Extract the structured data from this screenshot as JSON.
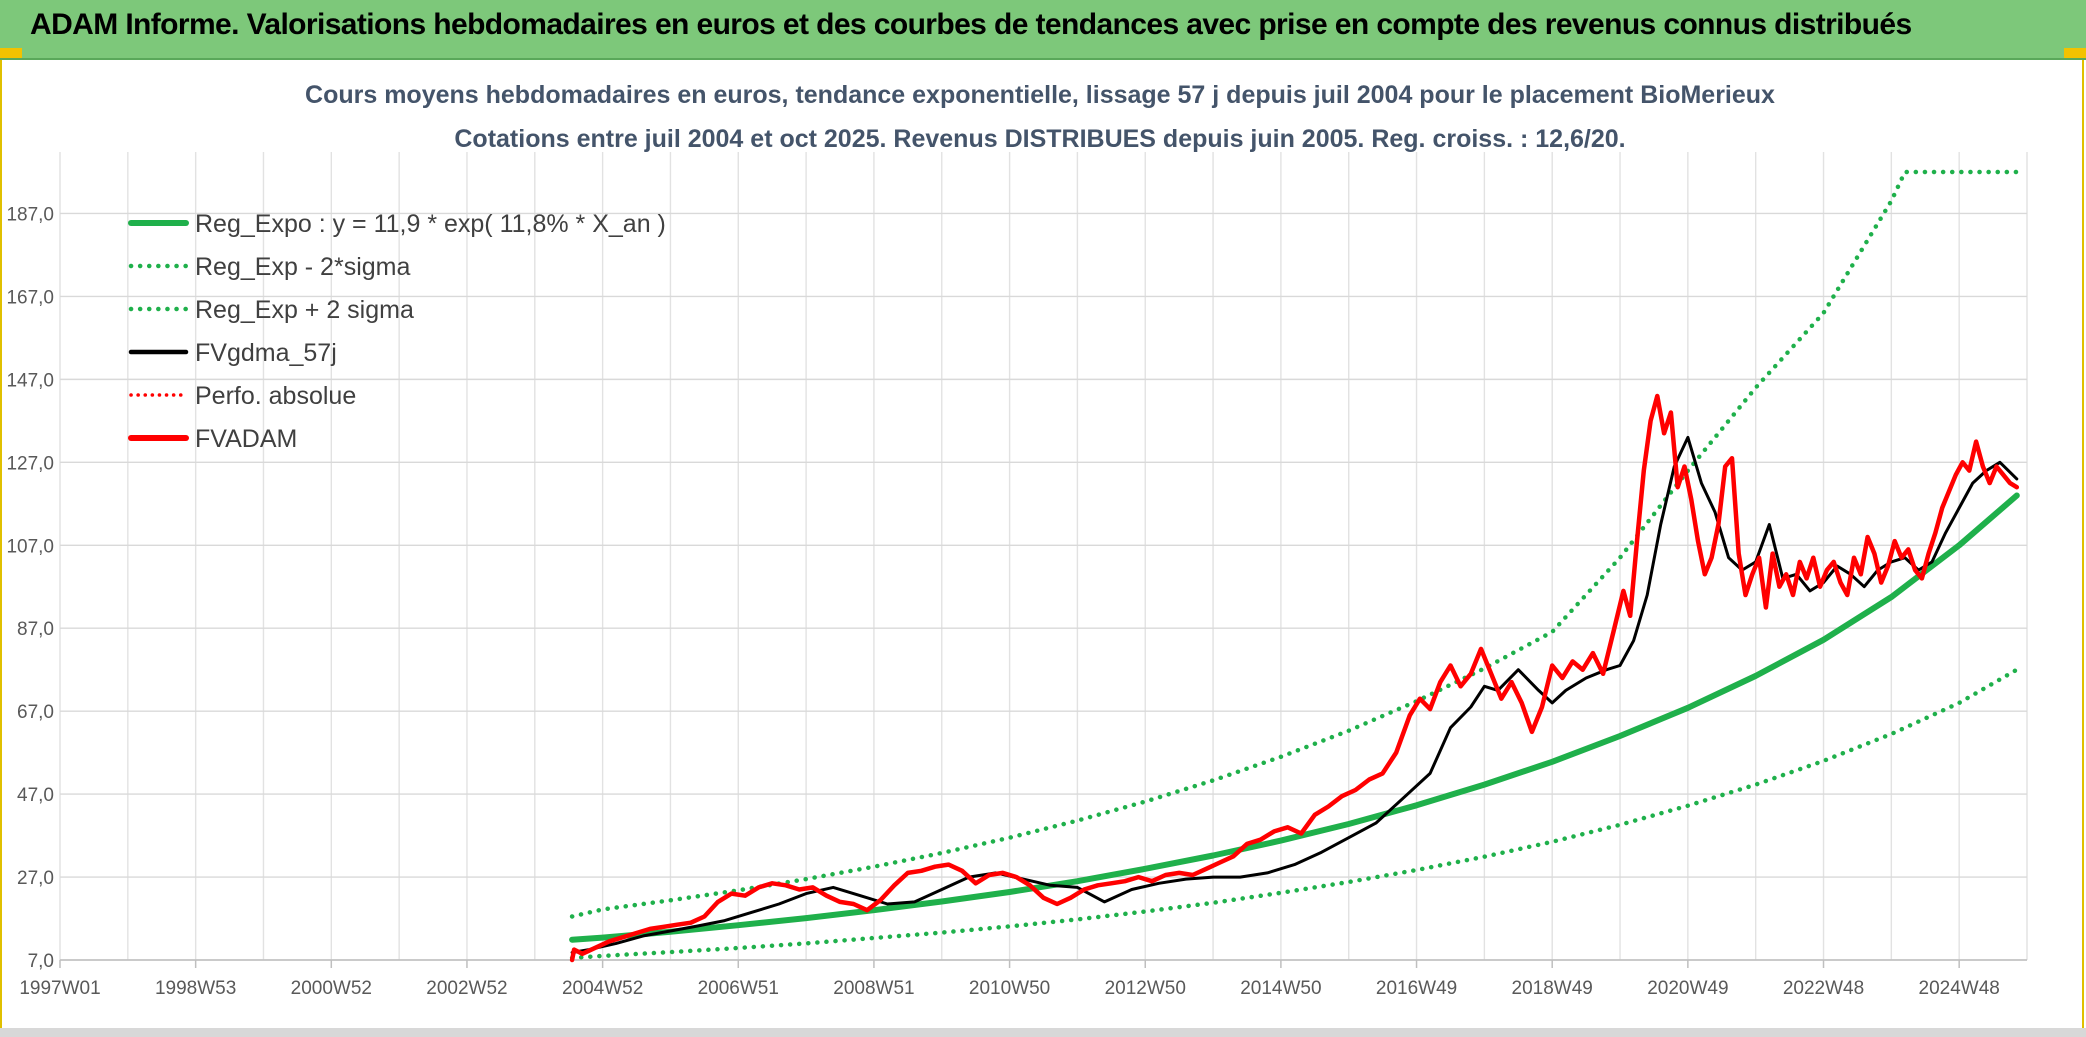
{
  "header": {
    "title": "ADAM Informe. Valorisations hebdomadaires en euros et des courbes de tendances avec prise en compte des revenus connus distribués",
    "background_color": "#7dc87a"
  },
  "chart_data": {
    "type": "line",
    "title_line1": "Cours moyens hebdomadaires en euros, tendance exponentielle, lissage 57 j depuis juil 2004 pour le placement BioMerieux",
    "title_line2": "Cotations entre juil 2004 et oct 2025. Revenus DISTRIBUES depuis juin 2005. Reg. croiss. : 12,6/20.",
    "x_range": [
      1997.0,
      2026.0
    ],
    "ylim": [
      7.0,
      197.0
    ],
    "y_ticks": [
      {
        "value": 7.0,
        "label": "7,0"
      },
      {
        "value": 27.0,
        "label": "27,0"
      },
      {
        "value": 47.0,
        "label": "47,0"
      },
      {
        "value": 67.0,
        "label": "67,0"
      },
      {
        "value": 87.0,
        "label": "87,0"
      },
      {
        "value": 107.0,
        "label": "107,0"
      },
      {
        "value": 127.0,
        "label": "127,0"
      },
      {
        "value": 147.0,
        "label": "147,0"
      },
      {
        "value": 167.0,
        "label": "167,0"
      },
      {
        "value": 187.0,
        "label": "187,0"
      }
    ],
    "x_ticks": [
      {
        "value": 1997.0,
        "label": "1997W01"
      },
      {
        "value": 1999.0,
        "label": "1998W53"
      },
      {
        "value": 2001.0,
        "label": "2000W52"
      },
      {
        "value": 2003.0,
        "label": "2002W52"
      },
      {
        "value": 2005.0,
        "label": "2004W52"
      },
      {
        "value": 2007.0,
        "label": "2006W51"
      },
      {
        "value": 2009.0,
        "label": "2008W51"
      },
      {
        "value": 2011.0,
        "label": "2010W50"
      },
      {
        "value": 2013.0,
        "label": "2012W50"
      },
      {
        "value": 2015.0,
        "label": "2014W50"
      },
      {
        "value": 2017.0,
        "label": "2016W49"
      },
      {
        "value": 2019.0,
        "label": "2018W49"
      },
      {
        "value": 2021.0,
        "label": "2020W49"
      },
      {
        "value": 2023.0,
        "label": "2022W48"
      },
      {
        "value": 2025.0,
        "label": "2024W48"
      }
    ],
    "minor_x_step": 1,
    "legend": {
      "placement": "top-left",
      "entries": [
        {
          "key": "reg_expo",
          "label": "Reg_Expo : y = 11,9 * exp( 11,8% *  X_an )"
        },
        {
          "key": "reg_minus",
          "label": "Reg_Exp - 2*sigma"
        },
        {
          "key": "reg_plus",
          "label": "Reg_Exp + 2 sigma"
        },
        {
          "key": "fvgdma",
          "label": "FVgdma_57j"
        },
        {
          "key": "perfo",
          "label": "Perfo. absolue"
        },
        {
          "key": "fvadam",
          "label": "FVADAM"
        }
      ]
    },
    "series": [
      {
        "key": "reg_expo",
        "name": "Reg_Expo",
        "color": "#1fb04b",
        "style": "solid",
        "x": [
          2004.55,
          2005,
          2006,
          2007,
          2008,
          2009,
          2010,
          2011,
          2012,
          2013,
          2014,
          2015,
          2016,
          2017,
          2018,
          2019,
          2020,
          2021,
          2022,
          2023,
          2024,
          2025,
          2025.85
        ],
        "values": [
          11.9,
          12.4,
          13.8,
          15.4,
          17.1,
          19.0,
          21.1,
          23.4,
          26.0,
          29.0,
          32.2,
          35.8,
          39.8,
          44.3,
          49.3,
          54.8,
          61.0,
          67.8,
          75.5,
          84.2,
          94.5,
          107.0,
          119.0
        ]
      },
      {
        "key": "reg_minus",
        "name": "Reg_Exp - 2*sigma",
        "color": "#1fb04b",
        "style": "dotted",
        "x": [
          2004.55,
          2005,
          2006,
          2007,
          2008,
          2009,
          2010,
          2011,
          2012,
          2013,
          2014,
          2015,
          2016,
          2017,
          2018,
          2019,
          2020,
          2021,
          2022,
          2023,
          2024,
          2025,
          2025.85
        ],
        "values": [
          7.5,
          8.0,
          8.9,
          9.9,
          11.0,
          12.3,
          13.6,
          15.1,
          16.8,
          18.7,
          20.8,
          23.2,
          25.8,
          28.7,
          31.9,
          35.5,
          39.6,
          44.2,
          49.3,
          55.0,
          61.5,
          69.0,
          77.0
        ]
      },
      {
        "key": "reg_plus",
        "name": "Reg_Exp + 2 sigma",
        "color": "#1fb04b",
        "style": "dotted",
        "x": [
          2004.55,
          2005,
          2006,
          2007,
          2008,
          2009,
          2010,
          2011,
          2012,
          2013,
          2014,
          2015,
          2016,
          2017,
          2018,
          2019,
          2020,
          2021,
          2022,
          2023,
          2024,
          2024.2,
          2025.85
        ],
        "values": [
          17.5,
          19.2,
          21.4,
          23.8,
          26.5,
          29.5,
          32.8,
          36.5,
          40.6,
          45.2,
          50.3,
          56.0,
          62.3,
          69.4,
          77.3,
          86.1,
          104.0,
          125.0,
          145.0,
          163.0,
          190.0,
          197.0,
          197.0
        ]
      },
      {
        "key": "fvgdma",
        "name": "FVgdma_57j",
        "color": "#000000",
        "style": "solid",
        "x": [
          2004.55,
          2004.8,
          2005.2,
          2005.6,
          2006.0,
          2006.4,
          2006.8,
          2007.2,
          2007.6,
          2008.0,
          2008.4,
          2008.8,
          2009.2,
          2009.6,
          2010.0,
          2010.4,
          2010.8,
          2011.2,
          2011.6,
          2012.0,
          2012.4,
          2012.8,
          2013.2,
          2013.6,
          2014.0,
          2014.4,
          2014.8,
          2015.2,
          2015.6,
          2016.0,
          2016.4,
          2016.8,
          2017.2,
          2017.5,
          2017.8,
          2018.0,
          2018.2,
          2018.5,
          2018.8,
          2019.0,
          2019.2,
          2019.5,
          2019.8,
          2020.0,
          2020.2,
          2020.4,
          2020.6,
          2020.8,
          2021.0,
          2021.2,
          2021.4,
          2021.6,
          2021.8,
          2022.0,
          2022.2,
          2022.4,
          2022.6,
          2022.8,
          2023.0,
          2023.2,
          2023.4,
          2023.6,
          2023.8,
          2024.0,
          2024.2,
          2024.4,
          2024.6,
          2024.8,
          2025.0,
          2025.2,
          2025.4,
          2025.6,
          2025.85
        ],
        "values": [
          8.8,
          9.5,
          11.0,
          12.8,
          14.0,
          15.2,
          16.5,
          18.5,
          20.5,
          23.0,
          24.5,
          22.5,
          20.5,
          21.0,
          24.0,
          27.0,
          28.0,
          26.5,
          25.0,
          24.5,
          21.0,
          24.0,
          25.5,
          26.5,
          27.0,
          27.0,
          28.0,
          30.0,
          33.0,
          36.5,
          40.0,
          46.0,
          52.0,
          63.0,
          68.0,
          73.0,
          72.0,
          77.0,
          72.0,
          69.0,
          72.0,
          75.0,
          77.0,
          78.0,
          84.0,
          95.0,
          112.0,
          126.0,
          133.0,
          122.0,
          115.0,
          104.0,
          101.0,
          103.0,
          112.0,
          99.0,
          100.0,
          96.0,
          98.0,
          102.0,
          100.0,
          97.0,
          101.0,
          103.0,
          104.0,
          101.0,
          103.0,
          110.0,
          116.0,
          122.0,
          125.0,
          127.0,
          123.0
        ]
      },
      {
        "key": "fvadam",
        "name": "FVADAM",
        "color": "#ff0000",
        "style": "solid",
        "x": [
          2004.55,
          2004.58,
          2004.7,
          2004.9,
          2005.1,
          2005.3,
          2005.5,
          2005.7,
          2005.9,
          2006.1,
          2006.3,
          2006.5,
          2006.7,
          2006.9,
          2007.1,
          2007.3,
          2007.5,
          2007.7,
          2007.9,
          2008.1,
          2008.3,
          2008.5,
          2008.7,
          2008.9,
          2009.1,
          2009.3,
          2009.5,
          2009.7,
          2009.9,
          2010.1,
          2010.3,
          2010.5,
          2010.7,
          2010.9,
          2011.1,
          2011.3,
          2011.5,
          2011.7,
          2011.9,
          2012.1,
          2012.3,
          2012.5,
          2012.7,
          2012.9,
          2013.1,
          2013.3,
          2013.5,
          2013.7,
          2013.9,
          2014.1,
          2014.3,
          2014.5,
          2014.7,
          2014.9,
          2015.1,
          2015.3,
          2015.5,
          2015.7,
          2015.9,
          2016.1,
          2016.3,
          2016.5,
          2016.7,
          2016.9,
          2017.05,
          2017.2,
          2017.35,
          2017.5,
          2017.65,
          2017.8,
          2017.95,
          2018.1,
          2018.25,
          2018.4,
          2018.55,
          2018.7,
          2018.85,
          2019.0,
          2019.15,
          2019.3,
          2019.45,
          2019.6,
          2019.75,
          2019.9,
          2020.05,
          2020.15,
          2020.25,
          2020.35,
          2020.45,
          2020.55,
          2020.65,
          2020.75,
          2020.85,
          2020.95,
          2021.05,
          2021.15,
          2021.25,
          2021.35,
          2021.45,
          2021.55,
          2021.65,
          2021.75,
          2021.85,
          2021.95,
          2022.05,
          2022.15,
          2022.25,
          2022.35,
          2022.45,
          2022.55,
          2022.65,
          2022.75,
          2022.85,
          2022.95,
          2023.05,
          2023.15,
          2023.25,
          2023.35,
          2023.45,
          2023.55,
          2023.65,
          2023.75,
          2023.85,
          2023.95,
          2024.05,
          2024.15,
          2024.25,
          2024.35,
          2024.45,
          2024.55,
          2024.65,
          2024.75,
          2024.85,
          2024.95,
          2025.05,
          2025.15,
          2025.25,
          2025.35,
          2025.45,
          2025.55,
          2025.65,
          2025.75,
          2025.85
        ],
        "values": [
          7.0,
          9.5,
          8.5,
          10.0,
          11.5,
          12.5,
          13.5,
          14.5,
          15.0,
          15.5,
          16.0,
          17.5,
          21.0,
          23.0,
          22.5,
          24.5,
          25.5,
          25.0,
          24.0,
          24.5,
          22.5,
          21.0,
          20.5,
          19.0,
          21.5,
          25.0,
          28.0,
          28.5,
          29.5,
          30.0,
          28.5,
          25.5,
          27.5,
          28.0,
          27.0,
          25.0,
          22.0,
          20.5,
          22.0,
          24.0,
          25.0,
          25.5,
          26.0,
          27.0,
          26.0,
          27.5,
          28.0,
          27.5,
          29.0,
          30.5,
          32.0,
          35.0,
          36.0,
          38.0,
          39.0,
          37.5,
          42.0,
          44.0,
          46.5,
          48.0,
          50.5,
          52.0,
          57.0,
          66.0,
          70.0,
          67.5,
          74.0,
          78.0,
          73.0,
          76.0,
          82.0,
          76.0,
          70.0,
          74.0,
          69.0,
          62.0,
          68.0,
          78.0,
          75.0,
          79.0,
          77.0,
          81.0,
          76.0,
          86.0,
          96.0,
          90.0,
          108.0,
          125.0,
          137.0,
          143.0,
          134.0,
          139.0,
          121.0,
          126.0,
          118.0,
          108.0,
          100.0,
          104.0,
          112.0,
          126.0,
          128.0,
          105.0,
          95.0,
          100.0,
          104.0,
          92.0,
          105.0,
          97.0,
          100.0,
          95.0,
          103.0,
          99.0,
          104.0,
          97.0,
          101.0,
          103.0,
          98.0,
          95.0,
          104.0,
          100.0,
          109.0,
          105.0,
          98.0,
          102.0,
          108.0,
          104.0,
          106.0,
          101.0,
          99.0,
          105.0,
          110.0,
          116.0,
          120.0,
          124.0,
          127.0,
          125.0,
          132.0,
          126.0,
          122.0,
          126.0,
          124.0,
          122.0,
          121.0
        ]
      }
    ]
  }
}
